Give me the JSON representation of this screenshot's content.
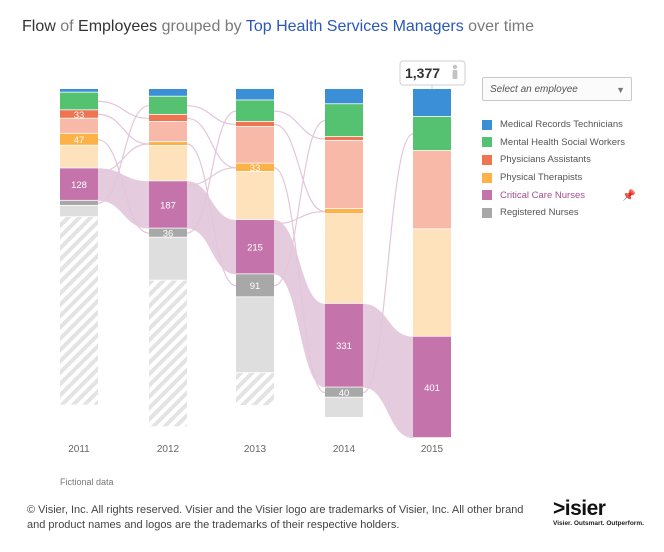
{
  "title": {
    "part1": "Flow",
    "part2": " of ",
    "part3": "Employees",
    "part4": " grouped by ",
    "part5": "Top Health Services Managers",
    "part6": " over time"
  },
  "total_badge": {
    "value": "1,377",
    "icon": "person-icon"
  },
  "employee_select": {
    "placeholder": "Select an employee",
    "icon": "chevron-down-icon"
  },
  "legend": [
    {
      "label": "Medical Records Technicians",
      "color": "#3b8fd6"
    },
    {
      "label": "Mental Health Social Workers",
      "color": "#55c271"
    },
    {
      "label": "Physicians Assistants",
      "color": "#ee7452"
    },
    {
      "label": "Physical Therapists",
      "color": "#fcb246"
    },
    {
      "label": "Critical Care Nurses",
      "color": "#c573ab",
      "active": true,
      "pin_icon": "pin-icon"
    },
    {
      "label": "Registered Nurses",
      "color": "#a8a8a8"
    }
  ],
  "footnote": "Fictional data",
  "copyright": "© Visier, Inc. All rights reserved. Visier and the Visier logo are trademarks of Visier, Inc. All other brand and product names and logos are the trademarks of their respective holders.",
  "logo": {
    "word": ">isier",
    "tagline": "Visier. Outsmart. Outperform."
  },
  "chart_data": {
    "type": "stacked-bar-flow",
    "title": "Flow of Employees grouped by Top Health Services Managers over time",
    "xlabel": "",
    "ylabel": "",
    "categories": [
      "2011",
      "2012",
      "2013",
      "2014",
      "2015"
    ],
    "total_2015": 1377,
    "series": [
      {
        "name": "Medical Records Technicians",
        "values": [
          14,
          30,
          45,
          60,
          110
        ]
      },
      {
        "name": "Mental Health Social Workers",
        "values": [
          70,
          72,
          85,
          130,
          135
        ]
      },
      {
        "name": "Physicians Assistants",
        "values": [
          33,
          28,
          20,
          15,
          0
        ]
      },
      {
        "name": "Physical Therapists",
        "values": [
          47,
          15,
          33,
          20,
          0
        ]
      },
      {
        "name": "Critical Care Nurses",
        "values": [
          128,
          187,
          215,
          331,
          401
        ]
      },
      {
        "name": "Registered Nurses",
        "values": [
          20,
          36,
          91,
          40,
          0
        ]
      }
    ],
    "light_segments": [
      {
        "name": "Physicians Assistants (other)",
        "values": [
          60,
          80,
          145,
          270,
          310
        ]
      },
      {
        "name": "Physical Therapists (other)",
        "values": [
          90,
          140,
          190,
          355,
          425
        ]
      },
      {
        "name": "Registered Nurses (other)",
        "values": [
          45,
          170,
          300,
          80,
          0
        ]
      },
      {
        "name": "Hatched (exited)",
        "values": [
          745,
          580,
          130,
          0,
          0
        ]
      }
    ],
    "value_labels": [
      {
        "year": "2011",
        "series": "Physicians Assistants",
        "text": "33"
      },
      {
        "year": "2011",
        "series": "Physical Therapists",
        "text": "47"
      },
      {
        "year": "2011",
        "series": "Critical Care Nurses",
        "text": "128"
      },
      {
        "year": "2012",
        "series": "Critical Care Nurses",
        "text": "187"
      },
      {
        "year": "2012",
        "series": "Registered Nurses",
        "text": "36"
      },
      {
        "year": "2013",
        "series": "Physical Therapists",
        "text": "33"
      },
      {
        "year": "2013",
        "series": "Critical Care Nurses",
        "text": "215"
      },
      {
        "year": "2013",
        "series": "Registered Nurses",
        "text": "91"
      },
      {
        "year": "2014",
        "series": "Critical Care Nurses",
        "text": "331"
      },
      {
        "year": "2014",
        "series": "Registered Nurses",
        "text": "40"
      },
      {
        "year": "2015",
        "series": "Critical Care Nurses",
        "text": "401"
      }
    ]
  }
}
